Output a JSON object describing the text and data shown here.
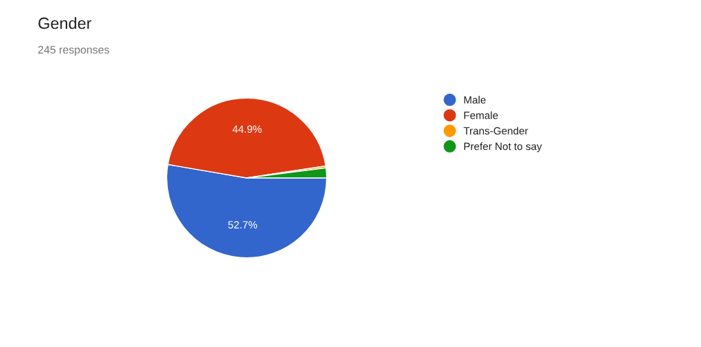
{
  "chart_data": {
    "type": "pie",
    "title": "Gender",
    "subtitle": "245 responses",
    "categories": [
      "Male",
      "Female",
      "Trans-Gender",
      "Prefer Not to say"
    ],
    "values": [
      52.7,
      44.9,
      0.4,
      2.0
    ],
    "colors": [
      "#3366cc",
      "#dc3912",
      "#ff9900",
      "#109618"
    ],
    "value_labels": [
      "52.7%",
      "44.9%",
      null,
      null
    ],
    "legend": "right"
  }
}
